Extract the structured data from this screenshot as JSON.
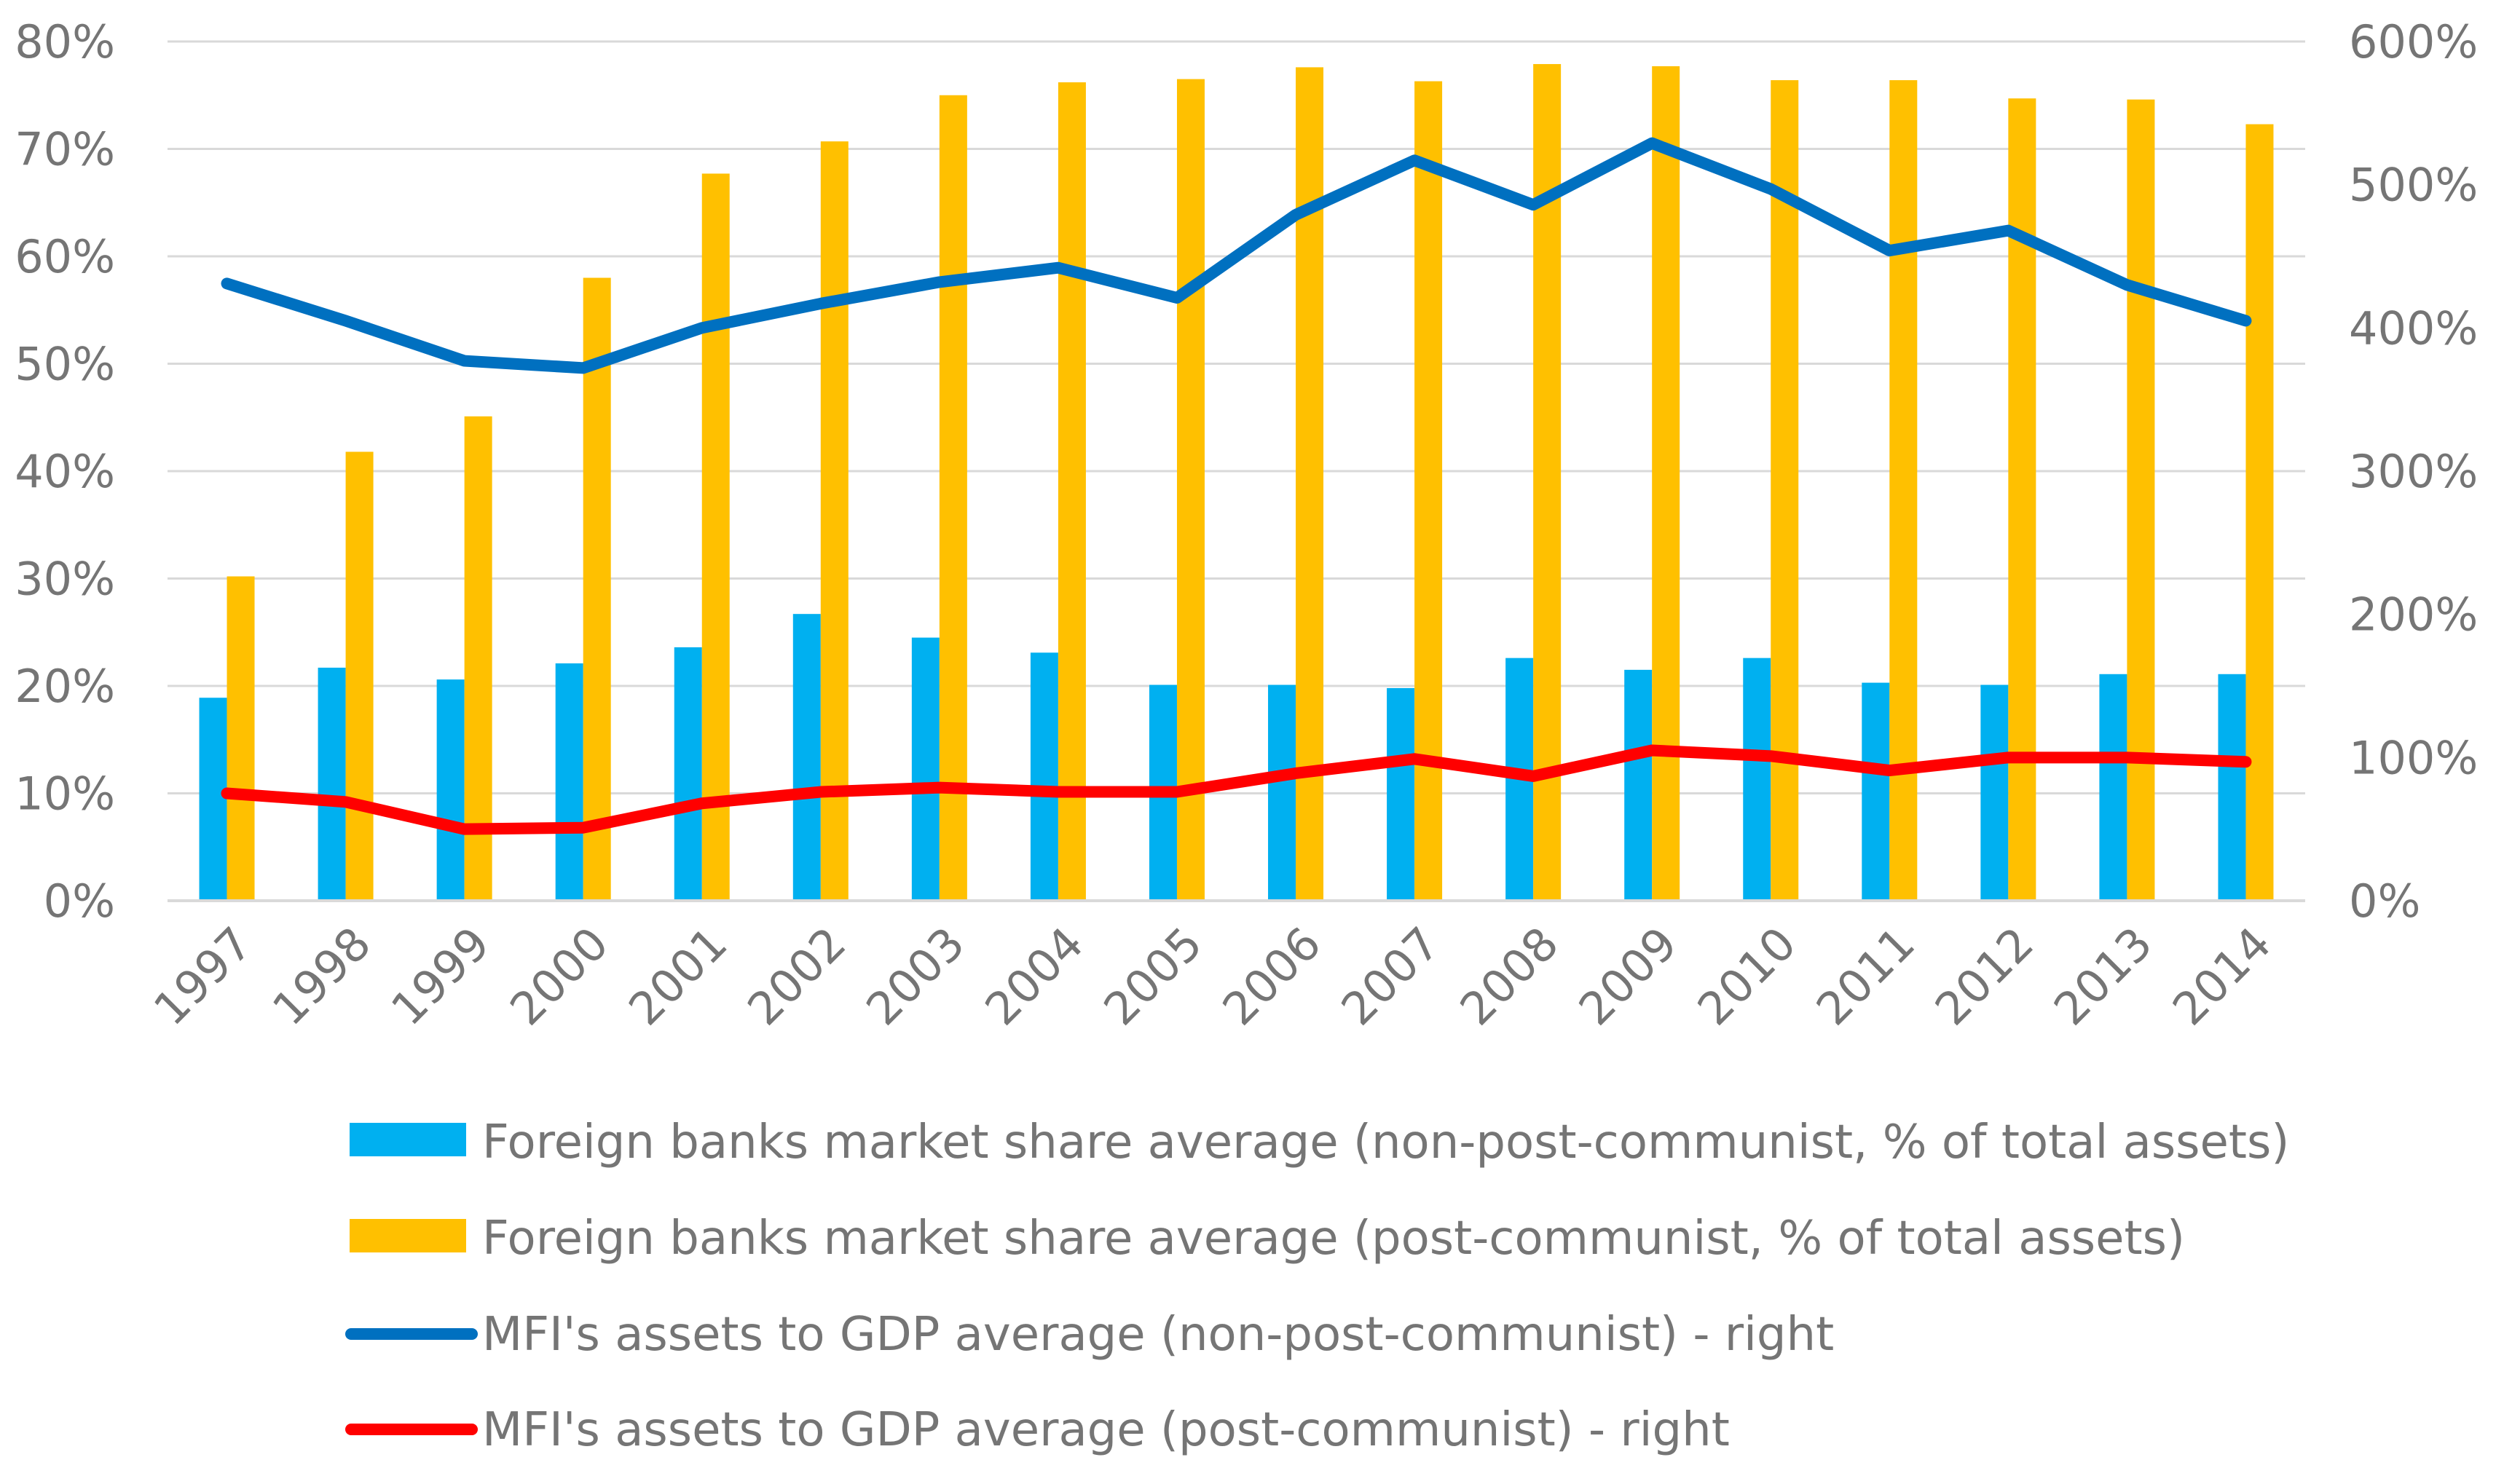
{
  "chart_data": {
    "type": "bar",
    "title": "",
    "categories": [
      "1997",
      "1998",
      "1999",
      "2000",
      "2001",
      "2002",
      "2003",
      "2004",
      "2005",
      "2006",
      "2007",
      "2008",
      "2009",
      "2010",
      "2011",
      "2012",
      "2013",
      "2014"
    ],
    "series": [
      {
        "name": "Foreign banks market share average (non-post-communist, % of total assets)",
        "type": "bar",
        "axis": "left",
        "color": "#00B0F0",
        "values": [
          18.9,
          21.7,
          20.6,
          22.1,
          23.6,
          26.7,
          24.5,
          23.1,
          20.1,
          20.1,
          19.8,
          22.6,
          21.5,
          22.6,
          20.3,
          20.1,
          21.1,
          21.1
        ]
      },
      {
        "name": "Foreign banks market share average (post-communist, % of total assets)",
        "type": "bar",
        "axis": "left",
        "color": "#FFC000",
        "values": [
          30.2,
          41.8,
          45.1,
          58.0,
          67.7,
          70.7,
          75.0,
          76.2,
          76.5,
          77.6,
          76.3,
          77.9,
          77.7,
          76.4,
          76.4,
          74.7,
          74.6,
          72.3
        ]
      },
      {
        "name": "MFI's assets to GDP average (non-post-communist) - right",
        "type": "line",
        "axis": "right",
        "color": "#0070C0",
        "values": [
          431,
          405,
          377,
          372,
          400,
          417,
          432,
          442,
          421,
          479,
          517,
          486,
          529,
          497,
          454,
          468,
          430,
          405
        ]
      },
      {
        "name": "MFI's assets to GDP average (post-communist) - right",
        "type": "line",
        "axis": "right",
        "color": "#FF0000",
        "values": [
          75,
          69,
          50,
          51,
          68,
          76,
          79,
          76,
          76,
          89,
          99,
          87,
          105,
          101,
          91,
          100,
          100,
          97
        ]
      }
    ],
    "left_axis": {
      "ylim": [
        0,
        80
      ],
      "step": 10,
      "suffix": "%",
      "ticks": [
        "0%",
        "10%",
        "20%",
        "30%",
        "40%",
        "50%",
        "60%",
        "70%",
        "80%"
      ]
    },
    "right_axis": {
      "ylim": [
        0,
        600
      ],
      "step": 100,
      "suffix": "%",
      "ticks": [
        "0%",
        "100%",
        "200%",
        "300%",
        "400%",
        "500%",
        "600%"
      ]
    },
    "grid": true,
    "legend_position": "bottom"
  }
}
